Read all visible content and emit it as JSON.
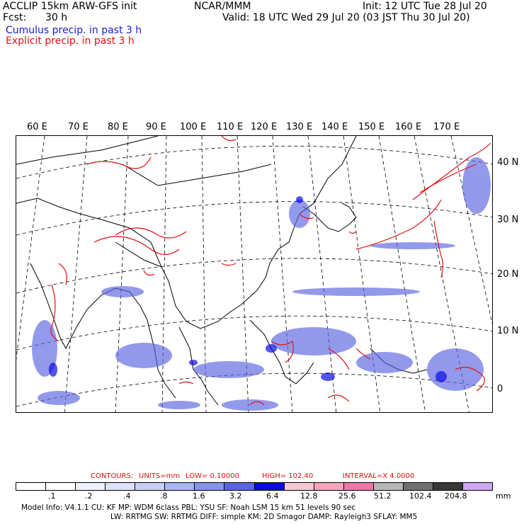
{
  "header": {
    "model": "ACCLIP 15km ARW-GFS init",
    "fcst_label": "Fcst:",
    "fcst_value": "30 h",
    "center": "NCAR/MMM",
    "init": "Init: 12 UTC Tue 28 Jul 20",
    "valid": "Valid: 18 UTC Wed 29 Jul 20 (03 JST Thu 30 Jul 20)",
    "cumulus": "Cumulus precip. in past 3 h",
    "explicit": "Explicit precip. in past 3 h"
  },
  "map": {
    "lon_labels": [
      "60 E",
      "70 E",
      "80 E",
      "90 E",
      "100 E",
      "110 E",
      "120 E",
      "130 E",
      "140 E",
      "150 E",
      "160 E",
      "170 E"
    ],
    "lat_labels": [
      "40 N",
      "30 N",
      "20 N",
      "10 N",
      "0"
    ]
  },
  "contours": {
    "label": "CONTOURS:",
    "units": "UNITS=mm",
    "low": "LOW= 0.10000",
    "high": "HIGH= 102.40",
    "interval": "INTERVAL=X 4.0000"
  },
  "colorbar": {
    "colors": [
      "#ffffff",
      "#ffffff",
      "#eef0fb",
      "#dde2f8",
      "#c8d0f4",
      "#aab6ef",
      "#8893ea",
      "#5a64e0",
      "#0a0ae6",
      "#f7c8d2",
      "#f4a6bc",
      "#ee78a8",
      "#b8b8b8",
      "#707070",
      "#383838",
      "#cfa6f0"
    ],
    "labels": [
      ".1",
      ".2",
      ".4",
      ".8",
      "1.6",
      "3.2",
      "6.4",
      "12.8",
      "25.6",
      "51.2",
      "102.4",
      "204.8"
    ],
    "unit": "mm"
  },
  "info": {
    "line1": "Model Info: V4.1.1     CU: KF      MP: WDM 6class   PBL: YSU       SF: Noah LSM     15 km    51 levels   90 sec",
    "line2": "LW: RRTMG     SW: RRTMG    DIFF: simple KM: 2D Smagor DAMP: Rayleigh3  SFLAY: MM5"
  }
}
